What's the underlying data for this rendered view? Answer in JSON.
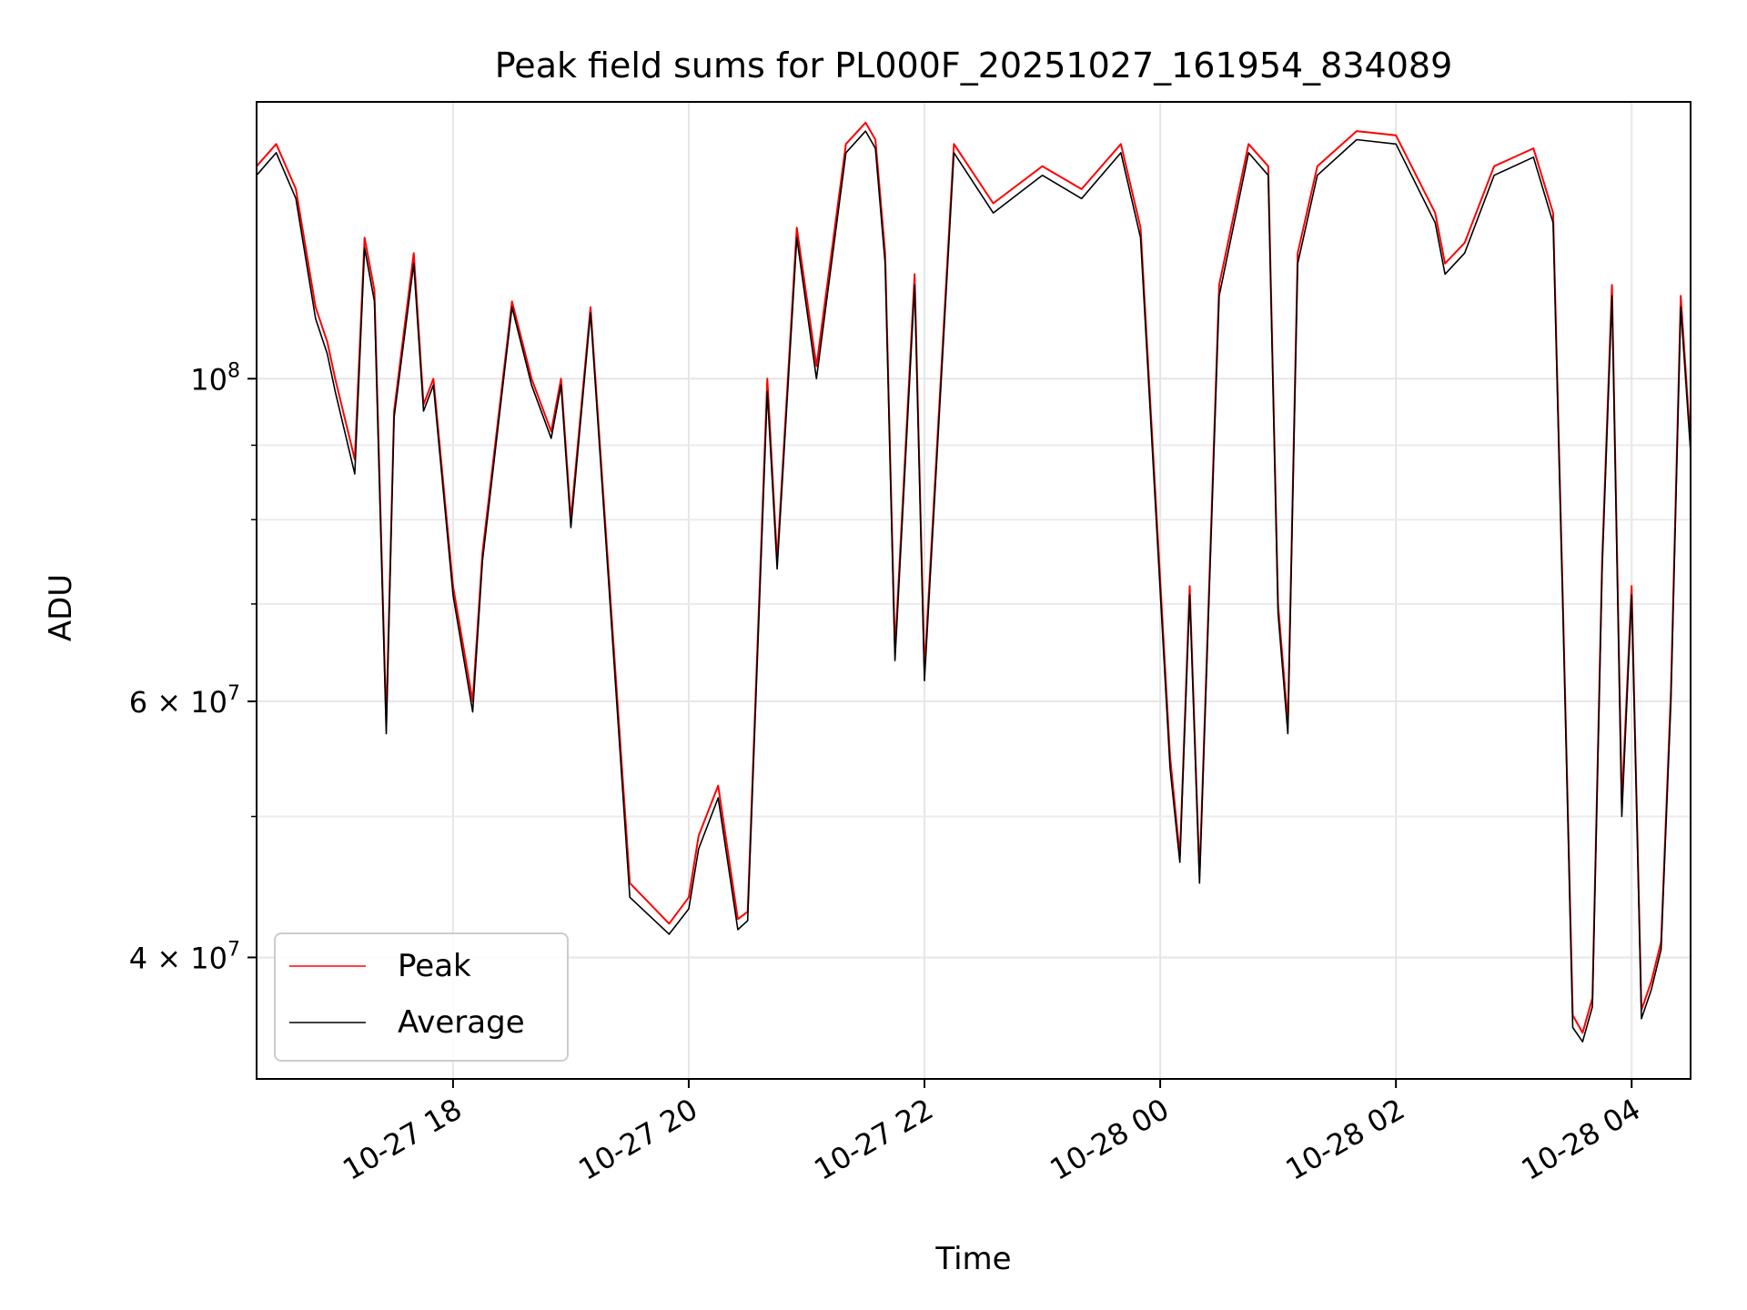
{
  "chart_data": {
    "type": "line",
    "title": "Peak field sums for PL000F_20251027_161954_834089",
    "xlabel": "Time",
    "ylabel": "ADU",
    "y_scale": "log",
    "ylim": [
      33000000,
      155000000
    ],
    "xlim": [
      "2025-10-27 16:20",
      "2025-10-28 04:30"
    ],
    "x_ticks": [
      {
        "x": "2025-10-27 18:00",
        "label": "10-27 18"
      },
      {
        "x": "2025-10-27 20:00",
        "label": "10-27 20"
      },
      {
        "x": "2025-10-27 22:00",
        "label": "10-27 22"
      },
      {
        "x": "2025-10-28 00:00",
        "label": "10-28 00"
      },
      {
        "x": "2025-10-28 02:00",
        "label": "10-28 02"
      },
      {
        "x": "2025-10-28 04:00",
        "label": "10-28 04"
      }
    ],
    "y_ticks_major": [
      {
        "y": 100000000,
        "base": "10",
        "exp": "8"
      },
      {
        "y": 60000000,
        "base": "6 × 10",
        "exp": "7"
      },
      {
        "y": 40000000,
        "base": "4 × 10",
        "exp": "7"
      }
    ],
    "y_ticks_minor": [
      90000000,
      80000000,
      70000000,
      50000000
    ],
    "grid": true,
    "legend_position": "lower-left",
    "x": [
      "2025-10-27 16:20",
      "2025-10-27 16:30",
      "2025-10-27 16:40",
      "2025-10-27 16:50",
      "2025-10-27 16:56",
      "2025-10-27 17:00",
      "2025-10-27 17:10",
      "2025-10-27 17:15",
      "2025-10-27 17:20",
      "2025-10-27 17:26",
      "2025-10-27 17:30",
      "2025-10-27 17:40",
      "2025-10-27 17:45",
      "2025-10-27 17:50",
      "2025-10-27 18:00",
      "2025-10-27 18:10",
      "2025-10-27 18:15",
      "2025-10-27 18:30",
      "2025-10-27 18:40",
      "2025-10-27 18:50",
      "2025-10-27 18:55",
      "2025-10-27 19:00",
      "2025-10-27 19:10",
      "2025-10-27 19:30",
      "2025-10-27 19:50",
      "2025-10-27 20:00",
      "2025-10-27 20:05",
      "2025-10-27 20:15",
      "2025-10-27 20:25",
      "2025-10-27 20:30",
      "2025-10-27 20:40",
      "2025-10-27 20:45",
      "2025-10-27 20:55",
      "2025-10-27 21:05",
      "2025-10-27 21:20",
      "2025-10-27 21:30",
      "2025-10-27 21:35",
      "2025-10-27 21:40",
      "2025-10-27 21:45",
      "2025-10-27 21:55",
      "2025-10-27 22:00",
      "2025-10-27 22:15",
      "2025-10-27 22:35",
      "2025-10-27 23:00",
      "2025-10-27 23:20",
      "2025-10-27 23:40",
      "2025-10-27 23:50",
      "2025-10-28 00:05",
      "2025-10-28 00:10",
      "2025-10-28 00:15",
      "2025-10-28 00:20",
      "2025-10-28 00:30",
      "2025-10-28 00:45",
      "2025-10-28 00:55",
      "2025-10-28 01:00",
      "2025-10-28 01:05",
      "2025-10-28 01:10",
      "2025-10-28 01:20",
      "2025-10-28 01:40",
      "2025-10-28 02:00",
      "2025-10-28 02:20",
      "2025-10-28 02:25",
      "2025-10-28 02:35",
      "2025-10-28 02:50",
      "2025-10-28 03:10",
      "2025-10-28 03:20",
      "2025-10-28 03:25",
      "2025-10-28 03:30",
      "2025-10-28 03:35",
      "2025-10-28 03:40",
      "2025-10-28 03:45",
      "2025-10-28 03:50",
      "2025-10-28 03:55",
      "2025-10-28 04:00",
      "2025-10-28 04:05",
      "2025-10-28 04:10",
      "2025-10-28 04:15",
      "2025-10-28 04:20",
      "2025-10-28 04:25",
      "2025-10-28 04:30"
    ],
    "series": [
      {
        "name": "Peak",
        "color": "#ff0000",
        "values": [
          140000000,
          145000000,
          135000000,
          112000000,
          106000000,
          100000000,
          88000000,
          125000000,
          115000000,
          58000000,
          95000000,
          122000000,
          96000000,
          100000000,
          72000000,
          60000000,
          76000000,
          113000000,
          100000000,
          92000000,
          100000000,
          80000000,
          112000000,
          45000000,
          42200000,
          44000000,
          48500000,
          52500000,
          42500000,
          43000000,
          100000000,
          75000000,
          127000000,
          102000000,
          145000000,
          150000000,
          146000000,
          122000000,
          65000000,
          118000000,
          63000000,
          145000000,
          132000000,
          140000000,
          135000000,
          145000000,
          127000000,
          55000000,
          47000000,
          72000000,
          45500000,
          116000000,
          145000000,
          140000000,
          70000000,
          58000000,
          122000000,
          140000000,
          148000000,
          147000000,
          130000000,
          120000000,
          124000000,
          140000000,
          144000000,
          130000000,
          70000000,
          36500000,
          35500000,
          37500000,
          75000000,
          116000000,
          51000000,
          72000000,
          36800000,
          38500000,
          41000000,
          61000000,
          114000000,
          90000000
        ]
      },
      {
        "name": "Average",
        "color": "#000000",
        "values": [
          138000000,
          143000000,
          133000000,
          110000000,
          104000000,
          98000000,
          86000000,
          123000000,
          113000000,
          57000000,
          94000000,
          120000000,
          95000000,
          99000000,
          71000000,
          59000000,
          75000000,
          112000000,
          99000000,
          91000000,
          99000000,
          79000000,
          111000000,
          44000000,
          41500000,
          43200000,
          47500000,
          51500000,
          41800000,
          42400000,
          98000000,
          74000000,
          125000000,
          100000000,
          143000000,
          148000000,
          144000000,
          120000000,
          64000000,
          116000000,
          62000000,
          143000000,
          130000000,
          138000000,
          133000000,
          143000000,
          125000000,
          54000000,
          46500000,
          71000000,
          45000000,
          114000000,
          143000000,
          138000000,
          69000000,
          57000000,
          120000000,
          138000000,
          146000000,
          145000000,
          128000000,
          118000000,
          122000000,
          138000000,
          142000000,
          128000000,
          69000000,
          35800000,
          35000000,
          37000000,
          74000000,
          114000000,
          50000000,
          71000000,
          36300000,
          38000000,
          40500000,
          60000000,
          112000000,
          89000000
        ]
      }
    ]
  }
}
